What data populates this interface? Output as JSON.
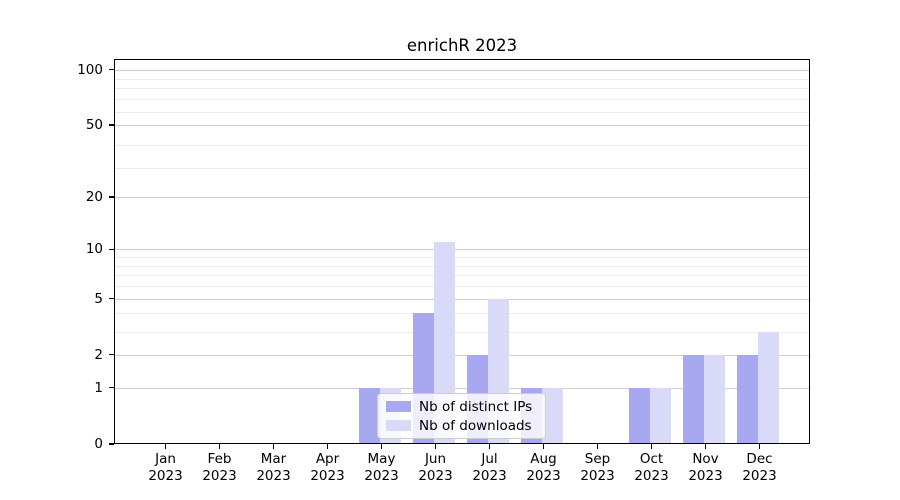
{
  "chart_data": {
    "type": "bar",
    "title": "enrichR 2023",
    "categories": [
      "Jan 2023",
      "Feb 2023",
      "Mar 2023",
      "Apr 2023",
      "May 2023",
      "Jun 2023",
      "Jul 2023",
      "Aug 2023",
      "Sep 2023",
      "Oct 2023",
      "Nov 2023",
      "Dec 2023"
    ],
    "series": [
      {
        "name": "Nb of distinct IPs",
        "color": "#a8a8f0",
        "values": [
          0,
          0,
          0,
          0,
          1,
          4,
          2,
          1,
          0,
          1,
          2,
          2
        ]
      },
      {
        "name": "Nb of downloads",
        "color": "#d9d9f8",
        "values": [
          0,
          0,
          0,
          0,
          1,
          11,
          5,
          1,
          0,
          1,
          2,
          3
        ]
      }
    ],
    "xlabel": "",
    "ylabel": "",
    "yscale": "log1p",
    "y_ticks": [
      0,
      1,
      2,
      5,
      10,
      20,
      50,
      100
    ],
    "y_minor_gridlines": [
      3,
      4,
      6,
      7,
      8,
      9,
      29,
      39,
      59,
      69,
      79,
      89
    ],
    "ylim": [
      0,
      114
    ],
    "grid": true,
    "legend_position": "inside lower-center"
  },
  "colors": {
    "background": "#ffffff",
    "axis": "#000000",
    "major_grid": "#cccccc",
    "minor_grid": "#ebebeb",
    "legend_border": "#cccccc"
  }
}
